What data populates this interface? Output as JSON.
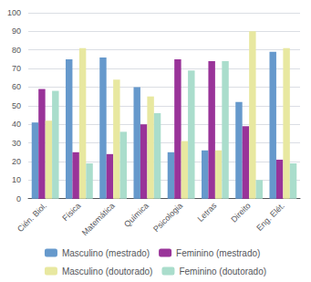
{
  "chart_data": {
    "type": "bar",
    "categories": [
      "Cién. Biol.",
      "Física",
      "Matemática",
      "Química",
      "Psicologia",
      "Letras",
      "Direito",
      "Eng. Elét."
    ],
    "series": [
      {
        "name": "Masculino (mestrado)",
        "color": "#6699cc",
        "values": [
          41,
          75,
          76,
          60,
          25,
          26,
          52,
          79
        ]
      },
      {
        "name": "Feminino (mestrado)",
        "color": "#993399",
        "values": [
          59,
          25,
          24,
          40,
          75,
          74,
          39,
          21
        ]
      },
      {
        "name": "Masculino (doutorado)",
        "color": "#e8e8a0",
        "values": [
          42,
          81,
          64,
          55,
          31,
          26,
          90,
          81
        ]
      },
      {
        "name": "Feminino (doutorado)",
        "color": "#aaddcc",
        "values": [
          58,
          19,
          36,
          46,
          69,
          74,
          10,
          19
        ]
      }
    ],
    "ylim": [
      0,
      100
    ],
    "yticks": [
      0,
      10,
      20,
      30,
      40,
      50,
      60,
      70,
      80,
      90,
      100
    ],
    "grid": true,
    "legend": "bottom"
  }
}
